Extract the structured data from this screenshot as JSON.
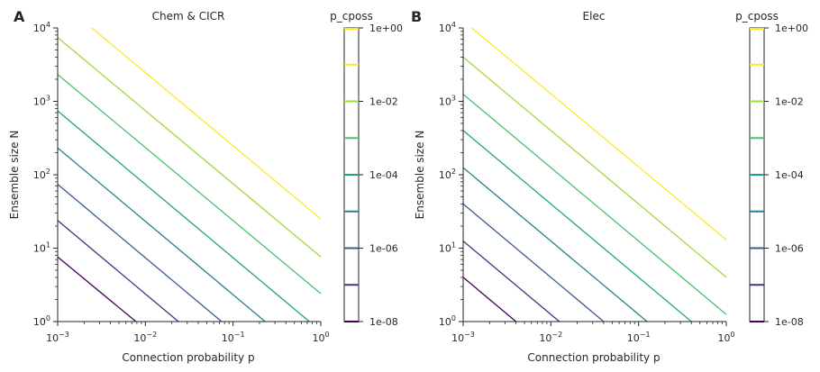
{
  "colors": [
    "#440154",
    "#46327e",
    "#365c8d",
    "#277f8e",
    "#1fa187",
    "#4ac16d",
    "#a0da39",
    "#fde725"
  ],
  "chart_data": [
    {
      "type": "line",
      "panel_label": "A",
      "title": "Chem & CICR",
      "xlabel": "Connection probability p",
      "ylabel": "Ensemble size N",
      "xscale": "log",
      "yscale": "log",
      "xlim": [
        0.001,
        1
      ],
      "ylim": [
        1,
        10000
      ],
      "xtick_labels": [
        "10^-3",
        "10^-2",
        "10^-1",
        "10^0"
      ],
      "ytick_labels": [
        "10^0",
        "10^1",
        "10^2",
        "10^3",
        "10^4"
      ],
      "legend": {
        "title": "p_cposs",
        "type": "colorbar",
        "scale": "log",
        "range": [
          1e-08,
          1
        ],
        "tick_labels": [
          "1e+00",
          "1e-02",
          "1e-04",
          "1e-06",
          "1e-08"
        ]
      },
      "series": [
        {
          "level": 1e-08,
          "x": [
            0.001,
            0.0078
          ],
          "y": [
            7.6,
            1
          ]
        },
        {
          "level": 1e-07,
          "x": [
            0.001,
            0.0238
          ],
          "y": [
            23.8,
            1
          ]
        },
        {
          "level": 1e-06,
          "x": [
            0.001,
            0.074
          ],
          "y": [
            74,
            1
          ]
        },
        {
          "level": 1e-05,
          "x": [
            0.001,
            0.232
          ],
          "y": [
            232,
            1
          ]
        },
        {
          "level": 0.0001,
          "x": [
            0.001,
            0.74
          ],
          "y": [
            740,
            1
          ]
        },
        {
          "level": 0.001,
          "x": [
            0.001,
            1
          ],
          "y": [
            2320,
            2.4
          ]
        },
        {
          "level": 0.01,
          "x": [
            0.001,
            1
          ],
          "y": [
            7400,
            7.6
          ]
        },
        {
          "level": 0.1,
          "x": [
            0.00245,
            1
          ],
          "y": [
            10000,
            25
          ]
        }
      ]
    },
    {
      "type": "line",
      "panel_label": "B",
      "title": "Elec",
      "xlabel": "Connection probability p",
      "ylabel": "Ensemble size N",
      "xscale": "log",
      "yscale": "log",
      "xlim": [
        0.001,
        1
      ],
      "ylim": [
        1,
        10000
      ],
      "xtick_labels": [
        "10^-3",
        "10^-2",
        "10^-1",
        "10^0"
      ],
      "ytick_labels": [
        "10^0",
        "10^1",
        "10^2",
        "10^3",
        "10^4"
      ],
      "legend": {
        "title": "p_cposs",
        "type": "colorbar",
        "scale": "log",
        "range": [
          1e-08,
          1
        ],
        "tick_labels": [
          "1e+00",
          "1e-02",
          "1e-04",
          "1e-06",
          "1e-08"
        ]
      },
      "series": [
        {
          "level": 1e-08,
          "x": [
            0.001,
            0.004
          ],
          "y": [
            4,
            1
          ]
        },
        {
          "level": 1e-07,
          "x": [
            0.001,
            0.0125
          ],
          "y": [
            12.5,
            1
          ]
        },
        {
          "level": 1e-06,
          "x": [
            0.001,
            0.04
          ],
          "y": [
            40,
            1
          ]
        },
        {
          "level": 1e-05,
          "x": [
            0.001,
            0.125
          ],
          "y": [
            125,
            1
          ]
        },
        {
          "level": 0.0001,
          "x": [
            0.001,
            0.4
          ],
          "y": [
            400,
            1
          ]
        },
        {
          "level": 0.001,
          "x": [
            0.001,
            1
          ],
          "y": [
            1250,
            1.25
          ]
        },
        {
          "level": 0.01,
          "x": [
            0.001,
            1
          ],
          "y": [
            4000,
            4
          ]
        },
        {
          "level": 0.1,
          "x": [
            0.00125,
            1
          ],
          "y": [
            10000,
            13
          ]
        }
      ]
    }
  ]
}
